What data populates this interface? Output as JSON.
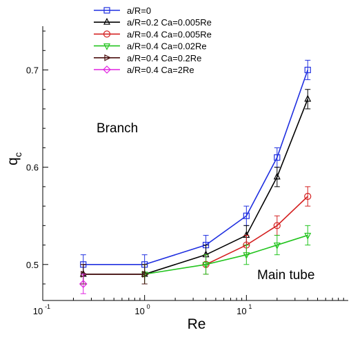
{
  "chart_data": {
    "type": "line",
    "xlabel": "Re",
    "ylabel": {
      "main": "q",
      "sub": "c"
    },
    "xscale": "log",
    "xlim": [
      0.1,
      100
    ],
    "ylim": [
      0.463,
      0.745
    ],
    "x_ticks": [
      {
        "base": "10",
        "exp": "-1"
      },
      {
        "base": "10",
        "exp": "0"
      },
      {
        "base": "10",
        "exp": "1"
      }
    ],
    "y_ticks": [
      "0.5",
      "0.6",
      "0.7"
    ],
    "annotations": [
      {
        "text": "Branch"
      },
      {
        "text": "Main tube"
      }
    ],
    "legend_position": "top-left",
    "grid": false,
    "series": [
      {
        "name": "a/R=0",
        "color": "#1f2fe0",
        "marker": "square",
        "x": [
          0.25,
          1,
          4,
          10,
          20,
          40
        ],
        "y": [
          0.5,
          0.5,
          0.52,
          0.55,
          0.61,
          0.7
        ],
        "err": 0.01
      },
      {
        "name": "a/R=0.2 Ca=0.005Re",
        "color": "#000000",
        "marker": "triangle-up",
        "x": [
          0.25,
          1,
          4,
          10,
          20,
          40
        ],
        "y": [
          0.49,
          0.49,
          0.51,
          0.53,
          0.59,
          0.67
        ],
        "err": 0.01
      },
      {
        "name": "a/R=0.4 Ca=0.005Re",
        "color": "#d42020",
        "marker": "circle",
        "x": [
          4,
          10,
          20,
          40
        ],
        "y": [
          0.5,
          0.52,
          0.54,
          0.57
        ],
        "err": 0.01
      },
      {
        "name": "a/R=0.4 Ca=0.02Re",
        "color": "#22c41e",
        "marker": "triangle-down",
        "x": [
          1,
          4,
          10,
          20,
          40
        ],
        "y": [
          0.49,
          0.5,
          0.51,
          0.52,
          0.53
        ],
        "err": 0.01
      },
      {
        "name": "a/R=0.4 Ca=0.2Re",
        "color": "#4a0f0f",
        "marker": "triangle-right",
        "x": [
          0.25,
          1
        ],
        "y": [
          0.49,
          0.49
        ],
        "err": 0.01
      },
      {
        "name": "a/R=0.4 Ca=2Re",
        "color": "#e020e0",
        "marker": "diamond",
        "x": [
          0.25
        ],
        "y": [
          0.48
        ],
        "err": 0.01
      }
    ]
  }
}
